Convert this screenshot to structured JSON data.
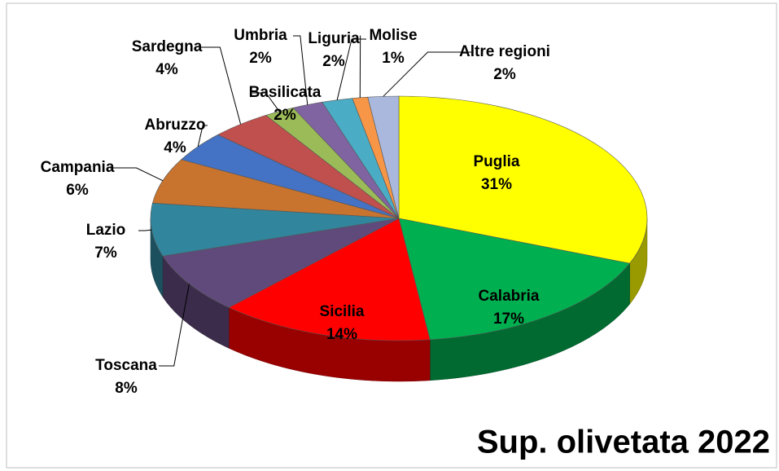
{
  "chart_data": {
    "type": "pie",
    "title": "Sup. olivetata 2022",
    "categories": [
      "Puglia",
      "Calabria",
      "Sicilia",
      "Toscana",
      "Lazio",
      "Campania",
      "Abruzzo",
      "Sardegna",
      "Basilicata",
      "Umbria",
      "Liguria",
      "Molise",
      "Altre regioni"
    ],
    "values": [
      31,
      17,
      14,
      8,
      7,
      6,
      4,
      4,
      2,
      2,
      2,
      1,
      2
    ],
    "value_labels": [
      "31%",
      "17%",
      "14%",
      "8%",
      "7%",
      "6%",
      "4%",
      "4%",
      "2%",
      "2%",
      "2%",
      "1%",
      "2%"
    ],
    "colors": [
      "#ffff00",
      "#00b050",
      "#ff0000",
      "#604a7b",
      "#31859c",
      "#c8742f",
      "#4472c4",
      "#c0504d",
      "#9bbb59",
      "#8064a2",
      "#4bacc6",
      "#f79646",
      "#a9b8dc"
    ]
  }
}
